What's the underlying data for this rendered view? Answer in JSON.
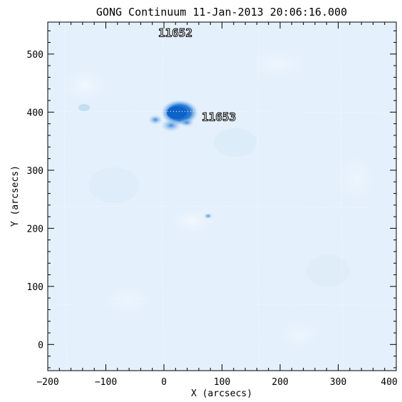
{
  "figure": {
    "title": "GONG Continuum 11-Jan-2013 20:06:16.000",
    "x_axis": {
      "label": "X (arcsecs)",
      "range": [
        -200,
        400
      ],
      "ticks": [
        "−200",
        "−100",
        "0",
        "100",
        "200",
        "300",
        "400"
      ]
    },
    "y_axis": {
      "label": "Y (arcsecs)",
      "range": [
        -45,
        555
      ],
      "ticks": [
        "0",
        "100",
        "200",
        "300",
        "400",
        "500"
      ]
    },
    "grid": true,
    "colors": {
      "background_disk": "#e4f0fb",
      "sunspot_dark": "#1a6fcf",
      "sunspot_mid": "#5fa0e0",
      "axis": "#000000",
      "grid": "#ffffff"
    },
    "regions": [
      {
        "label": "11652",
        "x": -10,
        "y": 530
      },
      {
        "label": "11653",
        "x": 65,
        "y": 385
      }
    ]
  }
}
